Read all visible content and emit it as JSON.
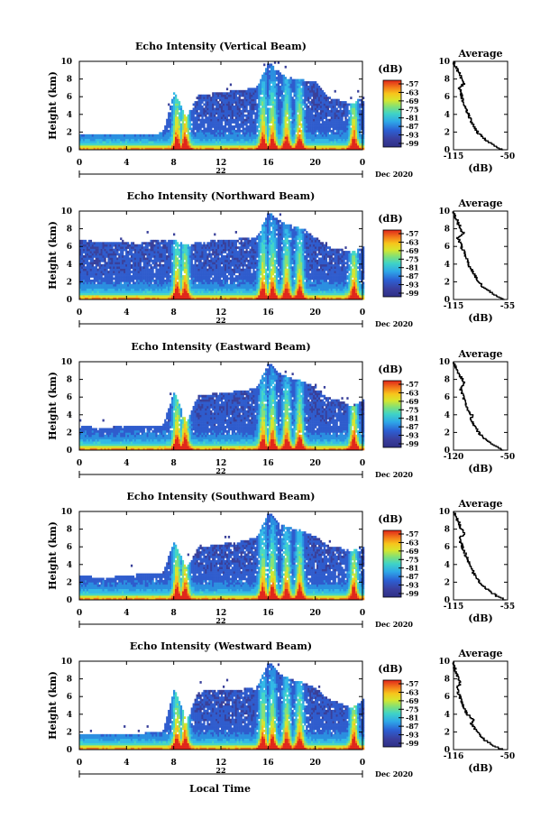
{
  "figure": {
    "xlabel_bottom": "Local Time",
    "date_label": "22",
    "month_label": "Dec 2020"
  },
  "chart_data": [
    {
      "type": "heatmap",
      "title": "Echo Intensity (Vertical Beam)",
      "ylabel": "Height (km)",
      "xlabel": "Local Time",
      "xlim": [
        0,
        24
      ],
      "ylim": [
        0,
        10
      ],
      "xticks": [
        "0",
        "4",
        "8",
        "12",
        "16",
        "20",
        "0"
      ],
      "yticks": [
        "0",
        "2",
        "4",
        "6",
        "8",
        "10"
      ],
      "colorbar": {
        "label": "(dB)",
        "ticks": [
          "-57",
          "-63",
          "-69",
          "-75",
          "-81",
          "-87",
          "-93",
          "-99"
        ]
      },
      "profile": {
        "title": "Average",
        "xlabel": "(dB)",
        "xticks": [
          "-115",
          "-50"
        ],
        "xlim": [
          -115,
          -50
        ],
        "yticks": [
          "0",
          "2",
          "4",
          "6",
          "8",
          "10"
        ],
        "ylim": [
          0,
          10
        ]
      },
      "echo_top_km": [
        1.6,
        1.6,
        1.6,
        1.6,
        1.5,
        1.6,
        1.6,
        1.8,
        6.5,
        3.5,
        6.0,
        6.2,
        6.4,
        6.6,
        6.7,
        7.0,
        9.8,
        8.5,
        8.0,
        7.8,
        7.5,
        5.8,
        5.5,
        5.0,
        6.0
      ],
      "avg_profile": [
        [
          0.0,
          -55
        ],
        [
          0.5,
          -66
        ],
        [
          1.0,
          -74
        ],
        [
          1.5,
          -80
        ],
        [
          2.0,
          -86
        ],
        [
          2.5,
          -89
        ],
        [
          3.0,
          -92
        ],
        [
          3.5,
          -95
        ],
        [
          4.0,
          -97
        ],
        [
          4.5,
          -99
        ],
        [
          5.0,
          -101
        ],
        [
          5.5,
          -103
        ],
        [
          6.0,
          -105
        ],
        [
          6.5,
          -106
        ],
        [
          7.0,
          -108
        ],
        [
          7.5,
          -103
        ],
        [
          8.0,
          -106
        ],
        [
          8.5,
          -107
        ],
        [
          9.0,
          -110
        ],
        [
          9.5,
          -113
        ],
        [
          10.0,
          -115
        ]
      ]
    },
    {
      "type": "heatmap",
      "title": "Echo Intensity (Northward Beam)",
      "ylabel": "Height (km)",
      "xlabel": "Local Time",
      "xlim": [
        0,
        24
      ],
      "ylim": [
        0,
        10
      ],
      "xticks": [
        "0",
        "4",
        "8",
        "12",
        "16",
        "20",
        "0"
      ],
      "yticks": [
        "0",
        "2",
        "4",
        "6",
        "8",
        "10"
      ],
      "colorbar": {
        "label": "(dB)",
        "ticks": [
          "-57",
          "-63",
          "-69",
          "-75",
          "-81",
          "-87",
          "-93",
          "-99"
        ]
      },
      "profile": {
        "title": "Average",
        "xlabel": "(dB)",
        "xticks": [
          "-115",
          "-55"
        ],
        "xlim": [
          -115,
          -55
        ],
        "yticks": [
          "0",
          "2",
          "4",
          "6",
          "8",
          "10"
        ],
        "ylim": [
          0,
          10
        ]
      },
      "echo_top_km": [
        6.5,
        6.5,
        6.4,
        6.3,
        6.3,
        6.2,
        6.5,
        6.6,
        6.6,
        6.0,
        6.4,
        6.5,
        6.6,
        6.7,
        6.8,
        7.0,
        9.8,
        8.7,
        8.2,
        7.8,
        6.8,
        5.8,
        5.6,
        5.2,
        5.8
      ],
      "avg_profile": [
        [
          0.0,
          -58
        ],
        [
          0.5,
          -68
        ],
        [
          1.0,
          -75
        ],
        [
          1.5,
          -82
        ],
        [
          2.0,
          -87
        ],
        [
          2.5,
          -90
        ],
        [
          3.0,
          -93
        ],
        [
          3.5,
          -96
        ],
        [
          4.0,
          -98
        ],
        [
          4.5,
          -100
        ],
        [
          5.0,
          -102
        ],
        [
          5.5,
          -104
        ],
        [
          6.0,
          -106
        ],
        [
          6.5,
          -108
        ],
        [
          7.0,
          -110
        ],
        [
          7.5,
          -104
        ],
        [
          8.0,
          -107
        ],
        [
          8.5,
          -109
        ],
        [
          9.0,
          -111
        ],
        [
          9.5,
          -113
        ],
        [
          10.0,
          -115
        ]
      ]
    },
    {
      "type": "heatmap",
      "title": "Echo Intensity (Eastward Beam)",
      "ylabel": "Height (km)",
      "xlabel": "Local Time",
      "xlim": [
        0,
        24
      ],
      "ylim": [
        0,
        10
      ],
      "xticks": [
        "0",
        "4",
        "8",
        "12",
        "16",
        "20",
        "0"
      ],
      "yticks": [
        "0",
        "2",
        "4",
        "6",
        "8",
        "10"
      ],
      "colorbar": {
        "label": "(dB)",
        "ticks": [
          "-57",
          "-63",
          "-69",
          "-75",
          "-81",
          "-87",
          "-93",
          "-99"
        ]
      },
      "profile": {
        "title": "Average",
        "xlabel": "(dB)",
        "xticks": [
          "-120",
          "-50"
        ],
        "xlim": [
          -120,
          -50
        ],
        "yticks": [
          "0",
          "2",
          "4",
          "6",
          "8",
          "10"
        ],
        "ylim": [
          0,
          10
        ]
      },
      "echo_top_km": [
        2.5,
        2.5,
        2.4,
        2.5,
        2.5,
        2.6,
        2.5,
        2.6,
        6.6,
        3.0,
        6.0,
        6.2,
        6.4,
        6.5,
        6.6,
        7.0,
        9.8,
        8.5,
        8.0,
        7.6,
        7.0,
        5.8,
        5.5,
        4.8,
        5.6
      ],
      "avg_profile": [
        [
          0.0,
          -55
        ],
        [
          0.5,
          -66
        ],
        [
          1.0,
          -75
        ],
        [
          1.5,
          -82
        ],
        [
          2.0,
          -87
        ],
        [
          2.5,
          -91
        ],
        [
          3.0,
          -94
        ],
        [
          3.5,
          -97
        ],
        [
          4.0,
          -96
        ],
        [
          4.5,
          -101
        ],
        [
          5.0,
          -103
        ],
        [
          5.5,
          -105
        ],
        [
          6.0,
          -107
        ],
        [
          6.5,
          -109
        ],
        [
          7.0,
          -111
        ],
        [
          7.5,
          -106
        ],
        [
          8.0,
          -108
        ],
        [
          8.5,
          -112
        ],
        [
          9.0,
          -115
        ],
        [
          9.5,
          -118
        ],
        [
          10.0,
          -120
        ]
      ]
    },
    {
      "type": "heatmap",
      "title": "Echo Intensity (Southward Beam)",
      "ylabel": "Height (km)",
      "xlabel": "Local Time",
      "xlim": [
        0,
        24
      ],
      "ylim": [
        0,
        10
      ],
      "xticks": [
        "0",
        "4",
        "8",
        "12",
        "16",
        "20",
        "0"
      ],
      "yticks": [
        "0",
        "2",
        "4",
        "6",
        "8",
        "10"
      ],
      "colorbar": {
        "label": "(dB)",
        "ticks": [
          "-57",
          "-63",
          "-69",
          "-75",
          "-81",
          "-87",
          "-93",
          "-99"
        ]
      },
      "profile": {
        "title": "Average",
        "xlabel": "(dB)",
        "xticks": [
          "-115",
          "-55"
        ],
        "xlim": [
          -115,
          -55
        ],
        "yticks": [
          "0",
          "2",
          "4",
          "6",
          "8",
          "10"
        ],
        "ylim": [
          0,
          10
        ]
      },
      "echo_top_km": [
        2.6,
        2.5,
        2.4,
        2.5,
        2.6,
        2.8,
        2.8,
        3.0,
        6.5,
        3.5,
        5.8,
        6.0,
        6.2,
        6.4,
        6.6,
        7.0,
        9.8,
        8.4,
        8.0,
        7.6,
        7.0,
        6.0,
        5.8,
        5.4,
        6.0
      ],
      "avg_profile": [
        [
          0.0,
          -57
        ],
        [
          0.5,
          -67
        ],
        [
          1.0,
          -75
        ],
        [
          1.5,
          -81
        ],
        [
          2.0,
          -86
        ],
        [
          2.5,
          -89
        ],
        [
          3.0,
          -92
        ],
        [
          3.5,
          -95
        ],
        [
          4.0,
          -97
        ],
        [
          4.5,
          -99
        ],
        [
          5.0,
          -101
        ],
        [
          5.5,
          -103
        ],
        [
          6.0,
          -105
        ],
        [
          6.5,
          -107
        ],
        [
          7.0,
          -109
        ],
        [
          7.5,
          -103
        ],
        [
          8.0,
          -106
        ],
        [
          8.5,
          -108
        ],
        [
          9.0,
          -110
        ],
        [
          9.5,
          -112
        ],
        [
          10.0,
          -115
        ]
      ]
    },
    {
      "type": "heatmap",
      "title": "Echo Intensity (Westward Beam)",
      "ylabel": "Height (km)",
      "xlabel": "Local Time",
      "xlim": [
        0,
        24
      ],
      "ylim": [
        0,
        10
      ],
      "xticks": [
        "0",
        "4",
        "8",
        "12",
        "16",
        "20",
        "0"
      ],
      "yticks": [
        "0",
        "2",
        "4",
        "6",
        "8",
        "10"
      ],
      "colorbar": {
        "label": "(dB)",
        "ticks": [
          "-57",
          "-63",
          "-69",
          "-75",
          "-81",
          "-87",
          "-93",
          "-99"
        ]
      },
      "profile": {
        "title": "Average",
        "xlabel": "(dB)",
        "xticks": [
          "-116",
          "-50"
        ],
        "xlim": [
          -116,
          -50
        ],
        "yticks": [
          "0",
          "2",
          "4",
          "6",
          "8",
          "10"
        ],
        "ylim": [
          0,
          10
        ]
      },
      "echo_top_km": [
        1.6,
        1.6,
        1.5,
        1.6,
        1.6,
        1.7,
        1.8,
        2.0,
        6.8,
        3.2,
        6.4,
        6.6,
        6.6,
        6.6,
        6.8,
        7.0,
        9.8,
        8.4,
        7.8,
        7.4,
        6.8,
        5.6,
        5.2,
        4.6,
        5.6
      ],
      "avg_profile": [
        [
          0.0,
          -55
        ],
        [
          0.5,
          -67
        ],
        [
          1.0,
          -76
        ],
        [
          1.5,
          -82
        ],
        [
          2.0,
          -87
        ],
        [
          2.5,
          -91
        ],
        [
          3.0,
          -94
        ],
        [
          3.5,
          -92
        ],
        [
          4.0,
          -99
        ],
        [
          4.5,
          -102
        ],
        [
          5.0,
          -104
        ],
        [
          5.5,
          -106
        ],
        [
          6.0,
          -108
        ],
        [
          6.5,
          -110
        ],
        [
          7.0,
          -112
        ],
        [
          7.5,
          -108
        ],
        [
          8.0,
          -110
        ],
        [
          8.5,
          -112
        ],
        [
          9.0,
          -114
        ],
        [
          9.5,
          -115
        ],
        [
          10.0,
          -116
        ]
      ]
    }
  ]
}
